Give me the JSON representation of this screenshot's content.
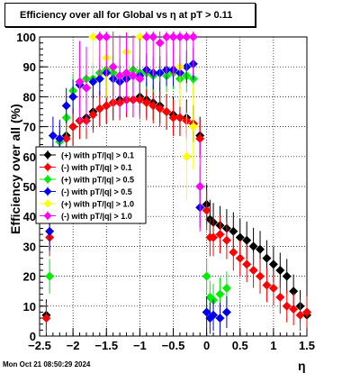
{
  "title": "Efficiency over all for Global vs    η at pT > 0.11",
  "timestamp": "Mon Oct 21 08:50:29 2024",
  "chart_data": {
    "type": "scatter",
    "xlabel": "η",
    "ylabel": "Efficiency over all (%)",
    "xlim": [
      -2.5,
      1.5
    ],
    "ylim": [
      0,
      100
    ],
    "x_ticks": [
      -2.5,
      -2,
      -1.5,
      -1,
      -0.5,
      0,
      0.5,
      1,
      1.5
    ],
    "x_tick_labels": [
      "−2.5",
      "−2",
      "−1.5",
      "−1",
      "−0.5",
      "0",
      "0.5",
      "1",
      "1.5"
    ],
    "y_ticks": [
      0,
      10,
      20,
      30,
      40,
      50,
      60,
      70,
      80,
      90,
      100
    ],
    "y_tick_labels": [
      "0",
      "10",
      "20",
      "30",
      "40",
      "50",
      "60",
      "70",
      "80",
      "90",
      "100"
    ],
    "grid": true,
    "legend_position": "middle-left",
    "series": [
      {
        "name": "(+) with pT/|q| > 0.1",
        "color": "#000000",
        "points": [
          [
            -2.4,
            7
          ],
          [
            -2.3,
            57
          ],
          [
            -2.2,
            62
          ],
          [
            -2.1,
            67
          ],
          [
            -2.0,
            70
          ],
          [
            -1.9,
            72
          ],
          [
            -1.8,
            73
          ],
          [
            -1.7,
            75
          ],
          [
            -1.6,
            76
          ],
          [
            -1.5,
            77
          ],
          [
            -1.4,
            78
          ],
          [
            -1.3,
            79
          ],
          [
            -1.2,
            79
          ],
          [
            -1.1,
            79
          ],
          [
            -1.0,
            80
          ],
          [
            -0.9,
            79
          ],
          [
            -0.8,
            78
          ],
          [
            -0.7,
            77
          ],
          [
            -0.6,
            75
          ],
          [
            -0.5,
            74
          ],
          [
            -0.4,
            73
          ],
          [
            -0.3,
            73
          ],
          [
            -0.2,
            71
          ],
          [
            -0.1,
            67
          ],
          [
            0.0,
            44
          ],
          [
            0.05,
            39
          ],
          [
            0.1,
            38
          ],
          [
            0.2,
            37
          ],
          [
            0.3,
            36
          ],
          [
            0.4,
            35
          ],
          [
            0.5,
            33
          ],
          [
            0.6,
            32
          ],
          [
            0.7,
            30
          ],
          [
            0.8,
            29
          ],
          [
            0.9,
            26
          ],
          [
            1.0,
            24
          ],
          [
            1.1,
            22
          ],
          [
            1.2,
            20
          ],
          [
            1.3,
            15
          ],
          [
            1.4,
            10
          ],
          [
            1.5,
            7
          ]
        ]
      },
      {
        "name": "(-) with pT/|q| > 0.1",
        "color": "#ff0000",
        "points": [
          [
            -2.4,
            6
          ],
          [
            -2.35,
            33
          ],
          [
            -2.3,
            55
          ],
          [
            -2.2,
            62
          ],
          [
            -2.1,
            66
          ],
          [
            -2.0,
            70
          ],
          [
            -1.9,
            72
          ],
          [
            -1.8,
            72
          ],
          [
            -1.7,
            74
          ],
          [
            -1.6,
            76
          ],
          [
            -1.5,
            77
          ],
          [
            -1.4,
            78
          ],
          [
            -1.3,
            78
          ],
          [
            -1.2,
            79
          ],
          [
            -1.1,
            79
          ],
          [
            -1.0,
            79
          ],
          [
            -0.9,
            78
          ],
          [
            -0.8,
            77
          ],
          [
            -0.7,
            76
          ],
          [
            -0.6,
            75
          ],
          [
            -0.5,
            73
          ],
          [
            -0.4,
            73
          ],
          [
            -0.3,
            72
          ],
          [
            -0.2,
            71
          ],
          [
            -0.1,
            66
          ],
          [
            0.0,
            42
          ],
          [
            0.05,
            33
          ],
          [
            0.1,
            33
          ],
          [
            0.2,
            34
          ],
          [
            0.3,
            32
          ],
          [
            0.4,
            28
          ],
          [
            0.5,
            26
          ],
          [
            0.6,
            24
          ],
          [
            0.7,
            22
          ],
          [
            0.8,
            20
          ],
          [
            0.9,
            17
          ],
          [
            1.0,
            16
          ],
          [
            1.1,
            13
          ],
          [
            1.2,
            10
          ],
          [
            1.3,
            9
          ],
          [
            1.4,
            7
          ],
          [
            1.5,
            8
          ]
        ]
      },
      {
        "name": "(+) with pT/|q| > 0.5",
        "color": "#00ee00",
        "points": [
          [
            -2.35,
            20
          ],
          [
            -2.3,
            58
          ],
          [
            -2.2,
            65
          ],
          [
            -2.1,
            73
          ],
          [
            -2.0,
            82
          ],
          [
            -1.9,
            84
          ],
          [
            -1.8,
            86
          ],
          [
            -1.7,
            86
          ],
          [
            -1.6,
            88
          ],
          [
            -1.5,
            89
          ],
          [
            -1.4,
            88
          ],
          [
            -1.3,
            87
          ],
          [
            -1.2,
            87
          ],
          [
            -1.1,
            89
          ],
          [
            -1.0,
            88
          ],
          [
            -0.9,
            88
          ],
          [
            -0.8,
            87
          ],
          [
            -0.7,
            88
          ],
          [
            -0.6,
            87
          ],
          [
            -0.5,
            88
          ],
          [
            -0.4,
            86
          ],
          [
            -0.3,
            87
          ],
          [
            -0.2,
            86
          ],
          [
            -0.1,
            50
          ],
          [
            0.0,
            20
          ],
          [
            0.05,
            13
          ],
          [
            0.1,
            12
          ],
          [
            0.2,
            14
          ],
          [
            0.3,
            16
          ]
        ]
      },
      {
        "name": "(-) with pT/|q| > 0.5",
        "color": "#0000ee",
        "points": [
          [
            -2.35,
            35
          ],
          [
            -2.3,
            67
          ],
          [
            -2.2,
            66
          ],
          [
            -2.1,
            77
          ],
          [
            -2.0,
            80
          ],
          [
            -1.9,
            84
          ],
          [
            -1.8,
            83
          ],
          [
            -1.7,
            85
          ],
          [
            -1.6,
            86
          ],
          [
            -1.5,
            88
          ],
          [
            -1.4,
            86
          ],
          [
            -1.3,
            85
          ],
          [
            -1.2,
            86
          ],
          [
            -1.1,
            87
          ],
          [
            -1.0,
            87
          ],
          [
            -0.9,
            89
          ],
          [
            -0.8,
            88
          ],
          [
            -0.7,
            88
          ],
          [
            -0.6,
            89
          ],
          [
            -0.5,
            89
          ],
          [
            -0.4,
            88
          ],
          [
            -0.3,
            90
          ],
          [
            -0.2,
            91
          ],
          [
            -0.1,
            43
          ],
          [
            0.0,
            8
          ],
          [
            0.05,
            6
          ],
          [
            0.1,
            7
          ],
          [
            0.2,
            6
          ],
          [
            0.3,
            8
          ]
        ]
      },
      {
        "name": "(+) with pT/|q| > 1.0",
        "color": "#ffff00",
        "points": [
          [
            -1.9,
            85
          ],
          [
            -1.7,
            100
          ],
          [
            -1.6,
            100
          ],
          [
            -1.5,
            93
          ],
          [
            -1.4,
            90
          ],
          [
            -1.2,
            95
          ],
          [
            -1.0,
            100
          ],
          [
            -0.8,
            100
          ],
          [
            -0.6,
            100
          ],
          [
            -0.4,
            90
          ],
          [
            -0.3,
            60
          ],
          [
            -0.2,
            70
          ]
        ]
      },
      {
        "name": "(-) with pT/|q| > 1.0",
        "color": "#ff00ff",
        "points": [
          [
            -1.9,
            85
          ],
          [
            -1.8,
            83
          ],
          [
            -1.6,
            100
          ],
          [
            -1.5,
            100
          ],
          [
            -1.4,
            90
          ],
          [
            -1.3,
            87
          ],
          [
            -1.2,
            88
          ],
          [
            -1.1,
            87
          ],
          [
            -1.0,
            86
          ],
          [
            -0.9,
            100
          ],
          [
            -0.8,
            100
          ],
          [
            -0.7,
            98
          ],
          [
            -0.6,
            100
          ],
          [
            -0.5,
            100
          ],
          [
            -0.4,
            100
          ],
          [
            -0.3,
            100
          ],
          [
            -0.2,
            100
          ],
          [
            -0.1,
            50
          ]
        ]
      }
    ]
  }
}
